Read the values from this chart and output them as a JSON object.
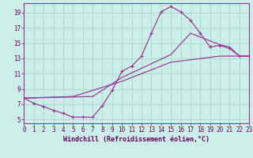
{
  "background_color": "#cceee8",
  "grid_color": "#aaddcc",
  "line_color": "#993399",
  "xlabel": "Windchill (Refroidissement éolien,°C)",
  "xlim": [
    0,
    23
  ],
  "ylim": [
    4.5,
    20.2
  ],
  "yticks": [
    5,
    7,
    9,
    11,
    13,
    15,
    17,
    19
  ],
  "xticks": [
    0,
    1,
    2,
    3,
    4,
    5,
    6,
    7,
    8,
    9,
    10,
    11,
    12,
    13,
    14,
    15,
    16,
    17,
    18,
    19,
    20,
    21,
    22,
    23
  ],
  "curve_x": [
    0,
    1,
    2,
    3,
    4,
    5,
    6,
    7,
    8,
    9,
    10,
    11,
    12,
    13,
    14,
    15,
    16,
    17,
    18,
    19,
    20,
    21,
    22,
    23
  ],
  "curve_y": [
    7.8,
    7.1,
    6.7,
    6.2,
    5.8,
    5.3,
    5.3,
    5.3,
    6.8,
    8.8,
    11.3,
    12.0,
    13.3,
    16.3,
    19.1,
    19.8,
    19.1,
    18.0,
    16.3,
    14.5,
    14.7,
    14.3,
    13.3,
    13.3
  ],
  "line_upper_x": [
    0,
    7,
    10,
    15,
    17,
    20,
    21,
    22,
    23
  ],
  "line_upper_y": [
    7.8,
    8.0,
    10.5,
    13.5,
    16.3,
    14.8,
    14.5,
    13.3,
    13.3
  ],
  "line_lower_x": [
    0,
    5,
    10,
    15,
    20,
    23
  ],
  "line_lower_y": [
    7.8,
    8.0,
    10.0,
    12.5,
    13.3,
    13.3
  ]
}
